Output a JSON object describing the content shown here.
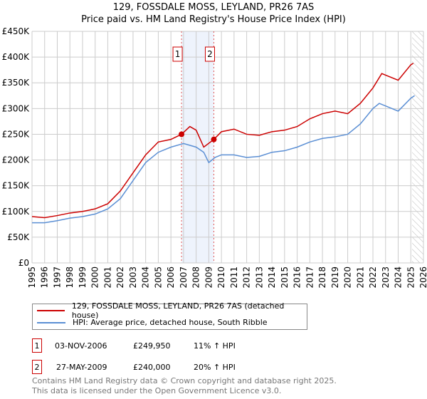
{
  "title": "129, FOSSDALE MOSS, LEYLAND, PR26 7AS",
  "subtitle": "Price paid vs. HM Land Registry's House Price Index (HPI)",
  "chart_data": {
    "type": "line",
    "xlim": [
      1995,
      2026
    ],
    "ylim": [
      0,
      450000
    ],
    "x_ticks": [
      "1995",
      "1996",
      "1997",
      "1998",
      "1999",
      "2000",
      "2001",
      "2002",
      "2003",
      "2004",
      "2005",
      "2006",
      "2007",
      "2008",
      "2009",
      "2010",
      "2011",
      "2012",
      "2013",
      "2014",
      "2015",
      "2016",
      "2017",
      "2018",
      "2019",
      "2020",
      "2021",
      "2022",
      "2023",
      "2024",
      "2025",
      "2026"
    ],
    "y_ticks": [
      {
        "v": 0,
        "l": "£0"
      },
      {
        "v": 50000,
        "l": "£50K"
      },
      {
        "v": 100000,
        "l": "£100K"
      },
      {
        "v": 150000,
        "l": "£150K"
      },
      {
        "v": 200000,
        "l": "£200K"
      },
      {
        "v": 250000,
        "l": "£250K"
      },
      {
        "v": 300000,
        "l": "£300K"
      },
      {
        "v": 350000,
        "l": "£350K"
      },
      {
        "v": 400000,
        "l": "£400K"
      },
      {
        "v": 450000,
        "l": "£450K"
      }
    ],
    "series": [
      {
        "name": "129, FOSSDALE MOSS, LEYLAND, PR26 7AS (detached house)",
        "color": "#cc0000",
        "x": [
          1995,
          1996,
          1997,
          1998,
          1999,
          2000,
          2001,
          2002,
          2003,
          2004,
          2005,
          2006,
          2006.84,
          2007.5,
          2008,
          2008.6,
          2009.4,
          2010,
          2011,
          2012,
          2013,
          2014,
          2015,
          2016,
          2017,
          2018,
          2019,
          2020,
          2021,
          2022,
          2022.7,
          2023,
          2024,
          2025,
          2025.2
        ],
        "y": [
          90000,
          88000,
          92000,
          97000,
          100000,
          105000,
          115000,
          140000,
          175000,
          210000,
          235000,
          240000,
          249950,
          265000,
          258000,
          225000,
          240000,
          255000,
          260000,
          250000,
          248000,
          255000,
          258000,
          265000,
          280000,
          290000,
          295000,
          290000,
          310000,
          340000,
          368000,
          365000,
          355000,
          385000,
          388000
        ]
      },
      {
        "name": "HPI: Average price, detached house, South Ribble",
        "color": "#5b8fd4",
        "x": [
          1995,
          1996,
          1997,
          1998,
          1999,
          2000,
          2001,
          2002,
          2003,
          2004,
          2005,
          2006,
          2007,
          2008,
          2008.6,
          2009,
          2009.5,
          2010,
          2011,
          2012,
          2013,
          2014,
          2015,
          2016,
          2017,
          2018,
          2019,
          2020,
          2021,
          2022,
          2022.5,
          2023,
          2024,
          2025,
          2025.3
        ],
        "y": [
          78000,
          78000,
          82000,
          87000,
          90000,
          95000,
          105000,
          125000,
          160000,
          195000,
          215000,
          225000,
          232000,
          225000,
          215000,
          195000,
          205000,
          210000,
          210000,
          205000,
          207000,
          215000,
          218000,
          225000,
          235000,
          242000,
          245000,
          250000,
          270000,
          300000,
          310000,
          305000,
          295000,
          320000,
          325000
        ]
      }
    ],
    "sales": [
      {
        "label": "1",
        "x": 2006.84,
        "y": 249950
      },
      {
        "label": "2",
        "x": 2009.4,
        "y": 240000
      }
    ],
    "forecast_from": 2025.1
  },
  "legend": [
    "129, FOSSDALE MOSS, LEYLAND, PR26 7AS (detached house)",
    "HPI: Average price, detached house, South Ribble"
  ],
  "transactions": [
    {
      "n": "1",
      "date": "03-NOV-2006",
      "price": "£249,950",
      "hpi": "11% ↑ HPI"
    },
    {
      "n": "2",
      "date": "27-MAY-2009",
      "price": "£240,000",
      "hpi": "20% ↑ HPI"
    }
  ],
  "footer": [
    "Contains HM Land Registry data © Crown copyright and database right 2025.",
    "This data is licensed under the Open Government Licence v3.0."
  ]
}
